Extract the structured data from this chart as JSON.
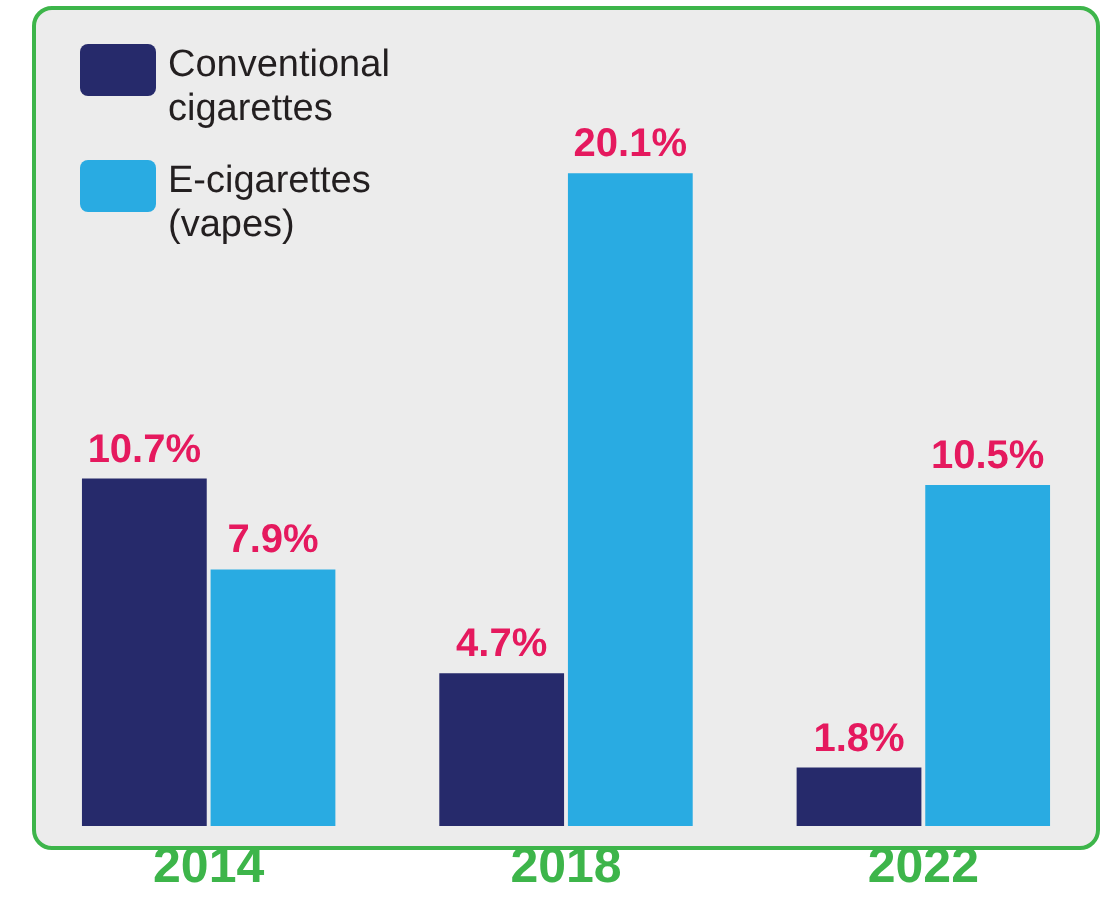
{
  "chart_data": {
    "type": "bar",
    "categories": [
      "2014",
      "2018",
      "2022"
    ],
    "series": [
      {
        "name": "Conventional cigarettes",
        "color": "#262a6b",
        "values": [
          10.7,
          4.7,
          1.8
        ],
        "value_labels": [
          "10.7%",
          "4.7%",
          "1.8%"
        ]
      },
      {
        "name": "E-cigarettes (vapes)",
        "color": "#29abe2",
        "values": [
          7.9,
          20.1,
          10.5
        ],
        "value_labels": [
          "7.9%",
          "20.1%",
          "10.5%"
        ]
      }
    ],
    "grid": false,
    "legend": "top left"
  }
}
